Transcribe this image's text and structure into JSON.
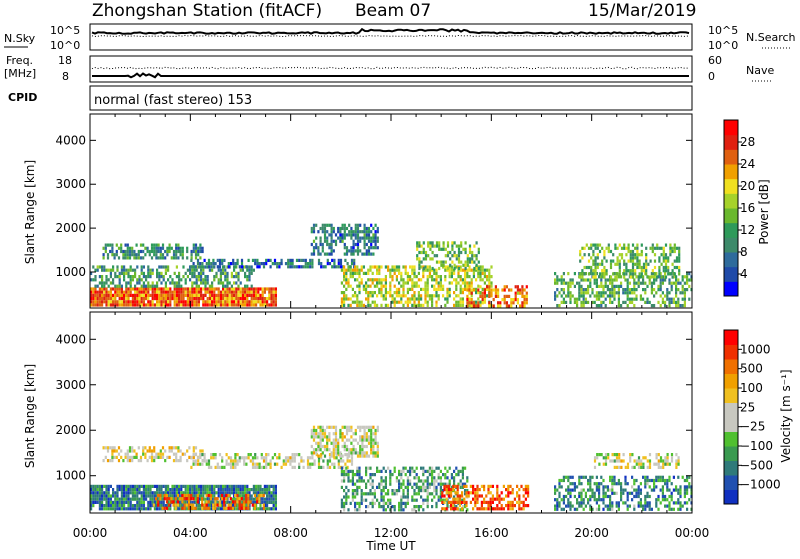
{
  "header": {
    "station": "Zhongshan Station (fitACF)",
    "beam": "Beam 07",
    "date": "15/Mar/2019"
  },
  "top_panel": {
    "left_label_line1": "N.Sky",
    "left_tick_top": "10^5",
    "left_tick_bottom": "10^0",
    "right_label": "N.Search",
    "right_tick_top": "10^5",
    "right_tick_bottom": "10^0"
  },
  "freq_panel": {
    "left_label_line1": "Freq.",
    "left_label_line2": "[MHz]",
    "left_tick_top": "18",
    "left_tick_bottom": "8",
    "right_label": "Nave",
    "right_tick_top": "60",
    "right_tick_bottom": "0"
  },
  "cpid_panel": {
    "label": "CPID",
    "program": "normal (fast stereo) 153"
  },
  "x_axis": {
    "label": "Time UT",
    "ticks": [
      "00:00",
      "04:00",
      "08:00",
      "12:00",
      "16:00",
      "20:00",
      "00:00"
    ]
  },
  "chart_data": [
    {
      "type": "heatmap",
      "title": "",
      "xlabel": "Time UT",
      "ylabel": "Slant Range [km]",
      "x_ticks": [
        "00:00",
        "04:00",
        "08:00",
        "12:00",
        "16:00",
        "20:00",
        "00:00"
      ],
      "xlim_hours": [
        0,
        24
      ],
      "ylim_km": [
        180,
        4600
      ],
      "y_ticks": [
        1000,
        2000,
        3000,
        4000
      ],
      "colorbar": {
        "label": "Power [dB]",
        "ticks": [
          "4",
          "8",
          "12",
          "16",
          "20",
          "24",
          "28"
        ],
        "colors": [
          "#0000ff",
          "#1f4aa8",
          "#2e6b9c",
          "#3d8a6a",
          "#2e9a5a",
          "#6ab82e",
          "#a6d22a",
          "#f0e020",
          "#f0a000",
          "#e06010",
          "#e02010",
          "#ff0000"
        ],
        "range": [
          0,
          30
        ]
      },
      "regions": [
        {
          "t0": 0.0,
          "t1": 7.4,
          "r0": 250,
          "r1": 650,
          "level": 0.8,
          "density": 0.95
        },
        {
          "t0": 0.0,
          "t1": 6.5,
          "r0": 650,
          "r1": 1150,
          "level": 0.35,
          "density": 0.55
        },
        {
          "t0": 0.5,
          "t1": 4.5,
          "r0": 1350,
          "r1": 1650,
          "level": 0.3,
          "density": 0.6
        },
        {
          "t0": 4.0,
          "t1": 10.5,
          "r0": 1150,
          "r1": 1300,
          "level": 0.2,
          "density": 0.6
        },
        {
          "t0": 8.8,
          "t1": 11.5,
          "r0": 1400,
          "r1": 2100,
          "level": 0.25,
          "density": 0.6
        },
        {
          "t0": 10.0,
          "t1": 16.0,
          "r0": 250,
          "r1": 1150,
          "level": 0.55,
          "density": 0.55
        },
        {
          "t0": 13.0,
          "t1": 15.5,
          "r0": 1100,
          "r1": 1700,
          "level": 0.45,
          "density": 0.5
        },
        {
          "t0": 15.0,
          "t1": 17.5,
          "r0": 250,
          "r1": 700,
          "level": 0.75,
          "density": 0.5
        },
        {
          "t0": 18.5,
          "t1": 24.0,
          "r0": 250,
          "r1": 1000,
          "level": 0.4,
          "density": 0.5
        },
        {
          "t0": 19.5,
          "t1": 23.5,
          "r0": 900,
          "r1": 1650,
          "level": 0.45,
          "density": 0.45
        }
      ]
    },
    {
      "type": "heatmap",
      "title": "",
      "xlabel": "Time UT",
      "ylabel": "Slant Range [km]",
      "x_ticks": [
        "00:00",
        "04:00",
        "08:00",
        "12:00",
        "16:00",
        "20:00",
        "00:00"
      ],
      "xlim_hours": [
        0,
        24
      ],
      "ylim_km": [
        180,
        4600
      ],
      "y_ticks": [
        1000,
        2000,
        3000,
        4000
      ],
      "colorbar": {
        "label": "Velocity [m s⁻¹]",
        "ticks": [
          "1000",
          "500",
          "100",
          "25",
          "−25",
          "−100",
          "−500",
          "−1000"
        ],
        "colors": [
          "#1030c0",
          "#2050b0",
          "#2f7a7a",
          "#3a9a50",
          "#50c030",
          "#c8c8c0",
          "#c8c8c0",
          "#f0c020",
          "#f0a000",
          "#f07000",
          "#f03000",
          "#ff0000"
        ],
        "range": [
          -1200,
          1200
        ]
      },
      "regions": [
        {
          "t0": 0.0,
          "t1": 7.4,
          "r0": 250,
          "r1": 800,
          "level": 0.2,
          "density": 0.9
        },
        {
          "t0": 2.5,
          "t1": 7.0,
          "r0": 250,
          "r1": 600,
          "level": 0.8,
          "density": 0.5
        },
        {
          "t0": 0.5,
          "t1": 4.5,
          "r0": 1350,
          "r1": 1650,
          "level": 0.55,
          "density": 0.5
        },
        {
          "t0": 4.0,
          "t1": 10.5,
          "r0": 1150,
          "r1": 1500,
          "level": 0.5,
          "density": 0.55
        },
        {
          "t0": 8.8,
          "t1": 11.5,
          "r0": 1400,
          "r1": 2100,
          "level": 0.5,
          "density": 0.6
        },
        {
          "t0": 10.0,
          "t1": 15.0,
          "r0": 250,
          "r1": 1200,
          "level": 0.3,
          "density": 0.5
        },
        {
          "t0": 14.0,
          "t1": 17.5,
          "r0": 250,
          "r1": 800,
          "level": 0.82,
          "density": 0.6
        },
        {
          "t0": 18.5,
          "t1": 24.0,
          "r0": 250,
          "r1": 1000,
          "level": 0.25,
          "density": 0.5
        },
        {
          "t0": 20.0,
          "t1": 23.5,
          "r0": 1200,
          "r1": 1500,
          "level": 0.5,
          "density": 0.5
        }
      ]
    }
  ]
}
